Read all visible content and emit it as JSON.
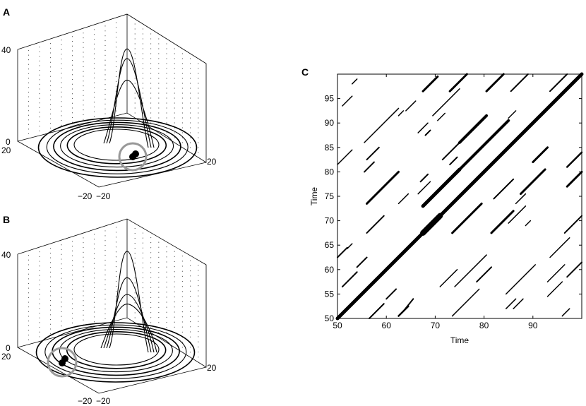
{
  "colors": {
    "ink": "#000000",
    "marker_ring": "#999999",
    "background": "#ffffff"
  },
  "chart_data": [
    {
      "panel": "A",
      "type": "line",
      "subtype": "3d-phase-trajectory",
      "xlabel": "",
      "ylabel": "",
      "zlabel": "",
      "zlim": [
        0,
        40
      ],
      "z_ticks": [
        "0",
        "40"
      ],
      "x_ticks": [
        "−20",
        "20"
      ],
      "y_ticks": [
        "−20",
        "20"
      ],
      "grid": true,
      "peaks_z": [
        37,
        33,
        24
      ],
      "marker": {
        "x": 5,
        "y": -12,
        "z": 0,
        "style": "filled dot with grey ring"
      }
    },
    {
      "panel": "B",
      "type": "line",
      "subtype": "3d-phase-trajectory",
      "xlabel": "",
      "ylabel": "",
      "zlabel": "",
      "zlim": [
        0,
        40
      ],
      "z_ticks": [
        "0",
        "40"
      ],
      "x_ticks": [
        "−20",
        "20"
      ],
      "y_ticks": [
        "−20",
        "20"
      ],
      "grid": true,
      "peaks_z": [
        38,
        27,
        20,
        16
      ],
      "marker": {
        "x": -14,
        "y": -4,
        "z": 0,
        "style": "filled dot with grey ring"
      }
    },
    {
      "panel": "C",
      "type": "scatter",
      "subtype": "recurrence-plot",
      "xlabel": "Time",
      "ylabel": "Time",
      "xlim": [
        50,
        100
      ],
      "ylim": [
        50,
        100
      ],
      "x_ticks": [
        50,
        60,
        70,
        80,
        90
      ],
      "y_ticks": [
        50,
        55,
        60,
        65,
        70,
        75,
        80,
        85,
        90,
        95
      ],
      "segments": [
        [
          50,
          50,
          100,
          100,
          5
        ],
        [
          51,
          56.5,
          54,
          59.5,
          2
        ],
        [
          54,
          60.5,
          56,
          62.5,
          2
        ],
        [
          50,
          62.5,
          52,
          64.5,
          2
        ],
        [
          52,
          64.3,
          53,
          65.3,
          1.5
        ],
        [
          56.5,
          50,
          59.5,
          53,
          2
        ],
        [
          60,
          54,
          62,
          56,
          2
        ],
        [
          62.5,
          50.5,
          64.5,
          52.5,
          2.5
        ],
        [
          63.5,
          51.5,
          65.5,
          54,
          2
        ],
        [
          50,
          81.5,
          53,
          84.5,
          1.5
        ],
        [
          51,
          93.5,
          53,
          95.5,
          1.5
        ],
        [
          53,
          98,
          54,
          99,
          1.5
        ],
        [
          55.5,
          80,
          57.5,
          82,
          2
        ],
        [
          56,
          82.5,
          58.5,
          85,
          2
        ],
        [
          55.5,
          86,
          62.5,
          93,
          1.5
        ],
        [
          56,
          73.5,
          62.5,
          80,
          3
        ],
        [
          56,
          67.5,
          59.5,
          71,
          2
        ],
        [
          62.5,
          73.5,
          64.5,
          75.5,
          1.5
        ],
        [
          67.5,
          67.5,
          71,
          71,
          8
        ],
        [
          67.5,
          73,
          75,
          80.5,
          5
        ],
        [
          67,
          78,
          68.5,
          79.5,
          2
        ],
        [
          66.5,
          75.5,
          69,
          78,
          1.5
        ],
        [
          67.5,
          96.5,
          70.5,
          99.5,
          3
        ],
        [
          69.5,
          91.5,
          75,
          97,
          1.5
        ],
        [
          64,
          92.5,
          66,
          94.5,
          1.5
        ],
        [
          62.5,
          91.5,
          63.5,
          92.5,
          1.5
        ],
        [
          66.5,
          88,
          68.5,
          90,
          1.5
        ],
        [
          68,
          87.5,
          69,
          88.5,
          2
        ],
        [
          70.5,
          90.5,
          72,
          92,
          1.5
        ],
        [
          73,
          96.5,
          76.5,
          100,
          3
        ],
        [
          71,
          56.5,
          74.5,
          60,
          1.5
        ],
        [
          74,
          56.5,
          80.5,
          63,
          1.5
        ],
        [
          71.5,
          82.5,
          75,
          86,
          2
        ],
        [
          73,
          81.5,
          74.5,
          83,
          2
        ],
        [
          73.5,
          67.5,
          79.5,
          73.5,
          3
        ],
        [
          75,
          86,
          80.5,
          91.5,
          4
        ],
        [
          75,
          80.5,
          80.5,
          86,
          4
        ],
        [
          80.5,
          86,
          85,
          90.5,
          4
        ],
        [
          73.5,
          50.5,
          79,
          56,
          1.5
        ],
        [
          78.5,
          57.5,
          81.5,
          60.5,
          2
        ],
        [
          80.5,
          96.5,
          84,
          100,
          3
        ],
        [
          82,
          74.5,
          86,
          78.5,
          2
        ],
        [
          81.5,
          67.5,
          86,
          72,
          3
        ],
        [
          85.5,
          96.5,
          89,
          100,
          2
        ],
        [
          85,
          91,
          86.5,
          92.5,
          1.5
        ],
        [
          85,
          69.5,
          88.5,
          73,
          1.5
        ],
        [
          84.5,
          55,
          90.5,
          61,
          1.5
        ],
        [
          86,
          52,
          88,
          54,
          1.5
        ],
        [
          86.5,
          73.5,
          88.5,
          75.5,
          1.5
        ],
        [
          87.5,
          75.5,
          92.5,
          80.5,
          3
        ],
        [
          90,
          82,
          93,
          85,
          3
        ],
        [
          91.5,
          91.5,
          93.5,
          93.5,
          3
        ],
        [
          93.5,
          96.5,
          97,
          100,
          2
        ],
        [
          97,
          77,
          100,
          80,
          3
        ],
        [
          97,
          81,
          100,
          84,
          2.5
        ],
        [
          96.5,
          67.5,
          100,
          71,
          2
        ],
        [
          97,
          58.5,
          100,
          61.5,
          2
        ],
        [
          88.5,
          69,
          89.5,
          70,
          1.5
        ],
        [
          93,
          54.5,
          96,
          57.5,
          1.5
        ],
        [
          93,
          57.5,
          96.5,
          61,
          1.5
        ],
        [
          93.5,
          62.5,
          97.5,
          66.5,
          1.5
        ],
        [
          96,
          50.5,
          97.5,
          52,
          1.5
        ],
        [
          84.5,
          52,
          86.5,
          54,
          1.5
        ]
      ]
    }
  ]
}
